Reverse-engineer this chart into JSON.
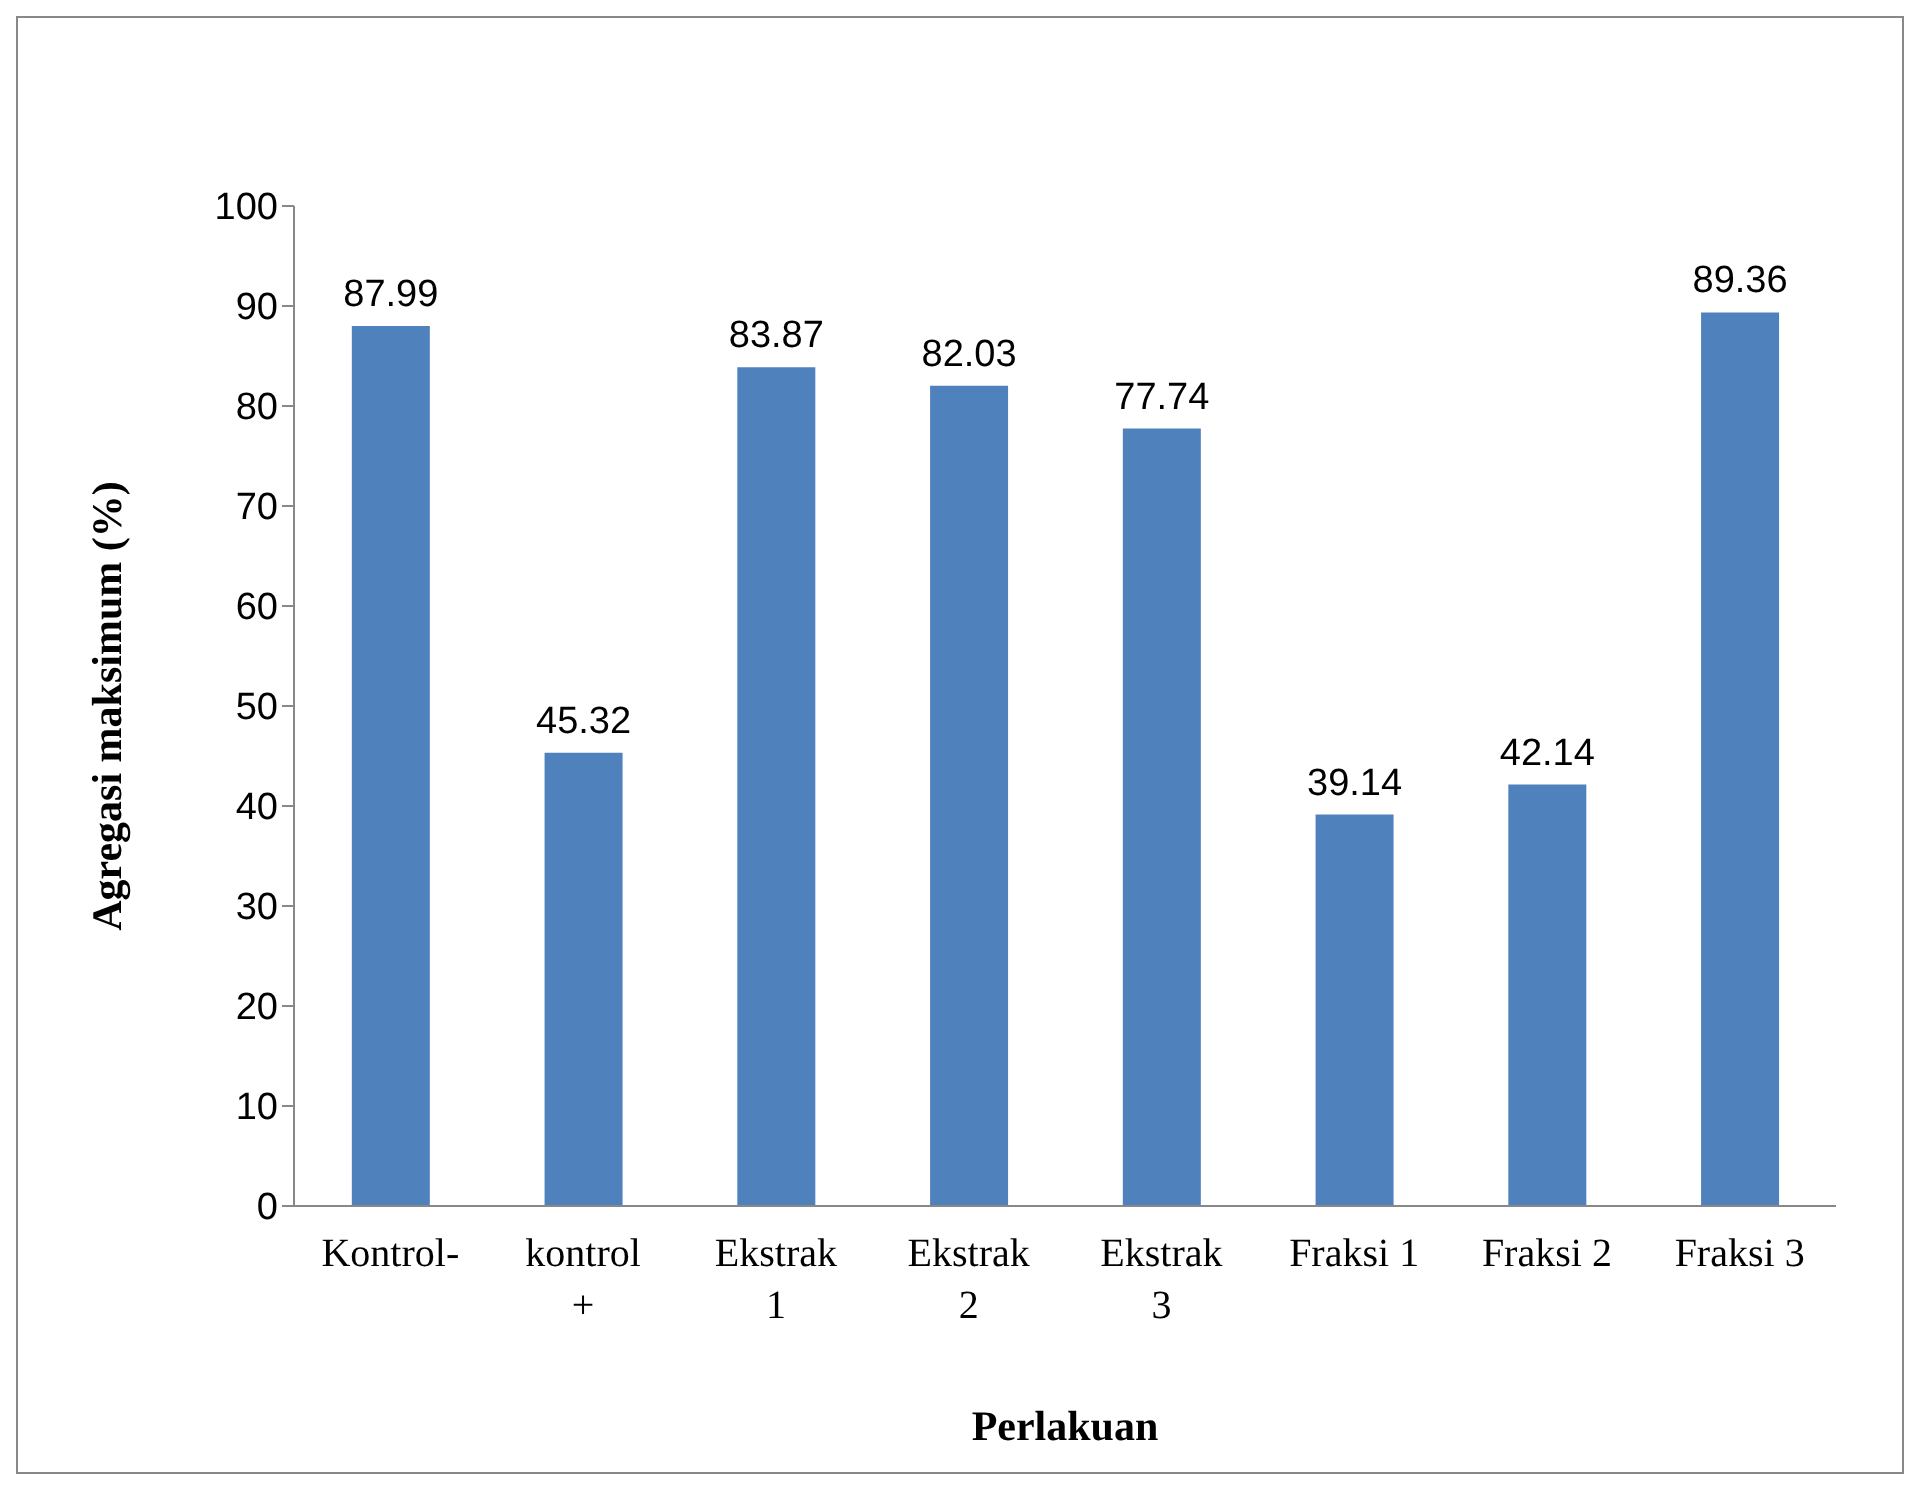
{
  "chart_data": {
    "type": "bar",
    "xlabel": "Perlakuan",
    "ylabel": "Agregasi maksimum (%)",
    "categories": [
      "Kontrol-",
      "kontrol +",
      "Ekstrak 1",
      "Ekstrak 2",
      "Ekstrak 3",
      "Fraksi 1",
      "Fraksi 2",
      "Fraksi 3"
    ],
    "values": [
      87.99,
      45.32,
      83.87,
      82.03,
      77.74,
      39.14,
      42.14,
      89.36
    ],
    "color": "#4f81bd",
    "ylim": [
      0,
      100
    ],
    "yticks": [
      0,
      10,
      20,
      30,
      40,
      50,
      60,
      70,
      80,
      90,
      100
    ],
    "data_labels": true,
    "grid": false,
    "legend": false
  }
}
